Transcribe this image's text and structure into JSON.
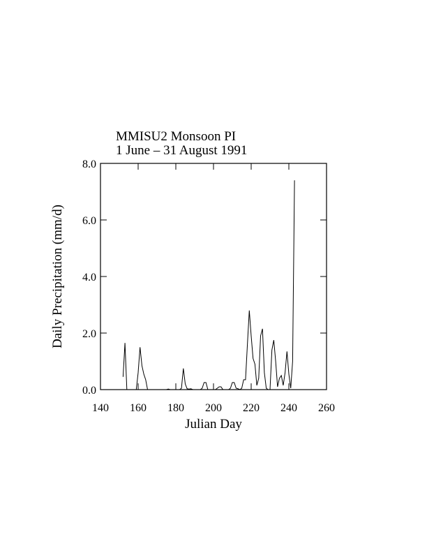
{
  "chart_data": {
    "type": "line",
    "title": "MMISU2 Monsoon PI",
    "subtitle": "1 June – 31 August 1991",
    "x_label": "Julian Day",
    "y_label": "Daily Precipitation (mm/d)",
    "xlim": [
      140,
      260
    ],
    "ylim": [
      0,
      8
    ],
    "xticks": [
      140,
      160,
      180,
      200,
      220,
      240,
      260
    ],
    "yticks": [
      {
        "value": 0,
        "label": "0.0"
      },
      {
        "value": 2,
        "label": "2.0"
      },
      {
        "value": 4,
        "label": "4.0"
      },
      {
        "value": 6,
        "label": "6.0"
      },
      {
        "value": 8,
        "label": "8.0"
      }
    ],
    "color": "#000000",
    "x": [
      152,
      153,
      154,
      155,
      156,
      157,
      158,
      159,
      160,
      161,
      162,
      163,
      164,
      165,
      166,
      167,
      168,
      169,
      170,
      171,
      172,
      173,
      174,
      175,
      176,
      177,
      178,
      179,
      180,
      181,
      182,
      183,
      184,
      185,
      186,
      187,
      188,
      189,
      190,
      191,
      192,
      193,
      194,
      195,
      196,
      197,
      198,
      199,
      200,
      201,
      202,
      203,
      204,
      205,
      206,
      207,
      208,
      209,
      210,
      211,
      212,
      213,
      214,
      215,
      216,
      217,
      218,
      219,
      220,
      221,
      222,
      223,
      224,
      225,
      226,
      227,
      228,
      229,
      230,
      231,
      232,
      233,
      234,
      235,
      236,
      237,
      238,
      239,
      240,
      241,
      242,
      243
    ],
    "values": [
      0.45,
      1.65,
      0,
      0,
      0,
      0,
      0,
      0,
      0.6,
      1.5,
      0.85,
      0.55,
      0.35,
      0,
      0,
      0,
      0,
      0,
      0,
      0,
      0,
      0,
      0,
      0,
      0.02,
      0,
      0,
      0,
      0,
      0,
      0,
      0.05,
      0.75,
      0.2,
      0.03,
      0.02,
      0.03,
      0,
      0,
      0,
      0,
      0,
      0.05,
      0.25,
      0.25,
      0,
      0,
      0,
      0,
      0,
      0.05,
      0.1,
      0.1,
      0,
      0,
      0,
      0,
      0.05,
      0.25,
      0.25,
      0.05,
      0.03,
      0,
      0.05,
      0.35,
      0.35,
      1.6,
      2.8,
      1.9,
      1.1,
      0.9,
      0.15,
      0.4,
      1.9,
      2.15,
      0.6,
      0.05,
      0,
      0,
      1.4,
      1.75,
      1.0,
      0.1,
      0.4,
      0.5,
      0.15,
      0.6,
      1.35,
      0.55,
      0.05,
      1.0,
      7.4
    ]
  }
}
